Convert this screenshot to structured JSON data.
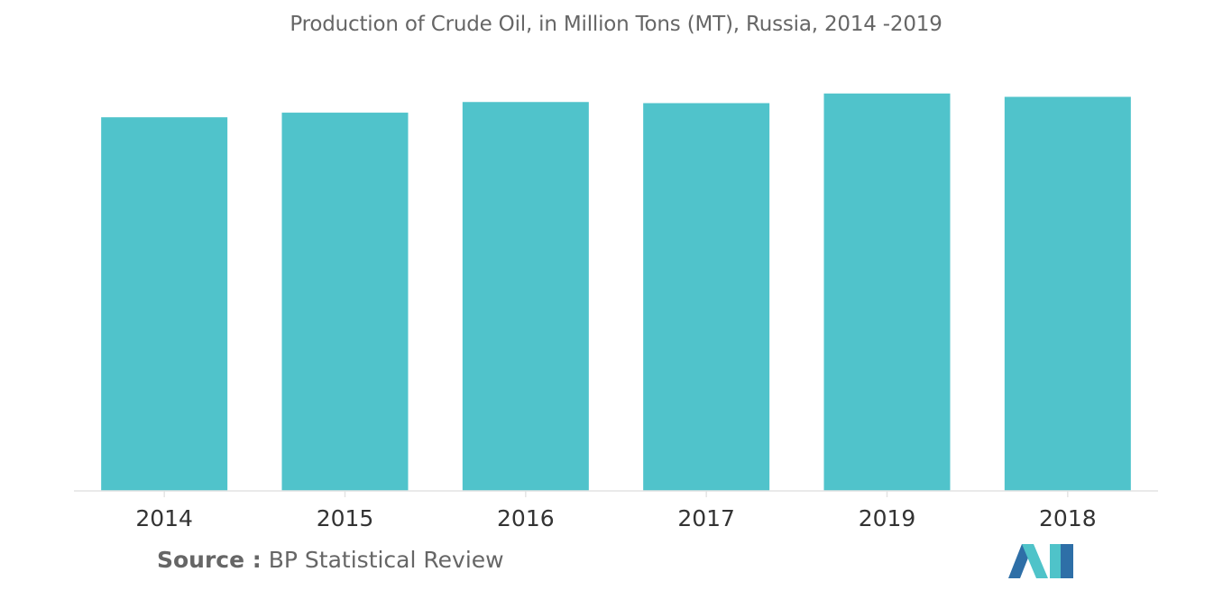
{
  "source": {
    "label": "Source :",
    "text": "BP Statistical Review"
  },
  "colors": {
    "bar": "#50C3CB",
    "axis": "#E4E4E4",
    "logo_dark": "#2E6FA7",
    "logo_light": "#4FC3C9"
  },
  "chart_data": {
    "type": "bar",
    "title": "Production of Crude Oil, in Million Tons (MT), Russia, 2014 -2019",
    "xlabel": "",
    "ylabel": "",
    "categories": [
      "2014",
      "2015",
      "2016",
      "2017",
      "2019",
      "2018"
    ],
    "values": [
      534.1,
      540.7,
      555.9,
      554.3,
      568.1,
      563.3
    ],
    "ylim": [
      0,
      600
    ],
    "grid": false,
    "legend": "none"
  }
}
